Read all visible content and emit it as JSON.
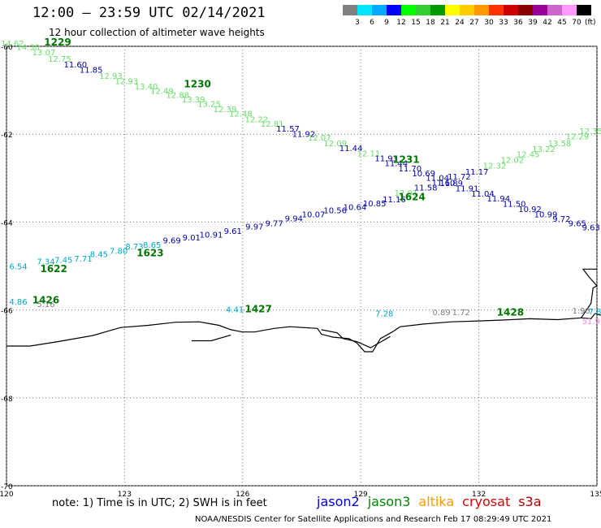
{
  "header": {
    "title": "12:00 — 23:59 UTC 02/14/2021",
    "subtitle": "12 hour collection of altimeter wave heights"
  },
  "colorbar": {
    "unit": "(ft)",
    "ticks": [
      "3",
      "6",
      "9",
      "12",
      "15",
      "18",
      "21",
      "24",
      "27",
      "30",
      "33",
      "36",
      "39",
      "42",
      "45",
      "70"
    ],
    "colors": [
      "#808080",
      "#00e5ff",
      "#00aaff",
      "#0000ff",
      "#00ff00",
      "#33cc33",
      "#009900",
      "#ffff00",
      "#ffcc00",
      "#ff9900",
      "#ff3300",
      "#cc0000",
      "#880000",
      "#990099",
      "#cc66cc",
      "#ff99ff",
      "#000000"
    ]
  },
  "axes": {
    "lat_ticks": [
      "-60",
      "-62",
      "-64",
      "-66",
      "-68",
      "-70"
    ],
    "lon_ticks": [
      "120",
      "123",
      "126",
      "129",
      "132",
      "135"
    ],
    "lat_range": [
      -70,
      -60
    ],
    "lon_range": [
      120,
      135
    ]
  },
  "tracks": [
    {
      "time": "1229",
      "time_lon": 121.3,
      "time_lat": -59.98,
      "time_color": "#007700",
      "points": [
        {
          "lon": 120.15,
          "lat": -60.0,
          "v": "14.62",
          "c": "#66dd66"
        },
        {
          "lon": 120.55,
          "lat": -60.08,
          "v": "14.30",
          "c": "#66dd66"
        },
        {
          "lon": 120.95,
          "lat": -60.2,
          "v": "13.07",
          "c": "#66dd66"
        },
        {
          "lon": 121.35,
          "lat": -60.35,
          "v": "12.75",
          "c": "#66dd66"
        },
        {
          "lon": 121.75,
          "lat": -60.48,
          "v": "11.60",
          "c": "#0000aa"
        },
        {
          "lon": 122.15,
          "lat": -60.6,
          "v": "11.85",
          "c": "#0000aa"
        },
        {
          "lon": 122.65,
          "lat": -60.74,
          "v": "12.93",
          "c": "#66dd66"
        },
        {
          "lon": 123.05,
          "lat": -60.86,
          "v": "12.93",
          "c": "#66dd66"
        }
      ]
    },
    {
      "time": "1230",
      "time_lon": 124.85,
      "time_lat": -60.93,
      "time_color": "#007700",
      "points": [
        {
          "lon": 123.55,
          "lat": -60.98,
          "v": "13.40",
          "c": "#66dd66"
        },
        {
          "lon": 123.95,
          "lat": -61.08,
          "v": "12.49",
          "c": "#66dd66"
        },
        {
          "lon": 124.35,
          "lat": -61.17,
          "v": "12.88",
          "c": "#66dd66"
        },
        {
          "lon": 124.75,
          "lat": -61.28,
          "v": "13.39",
          "c": "#66dd66"
        },
        {
          "lon": 125.15,
          "lat": -61.38,
          "v": "13.25",
          "c": "#66dd66"
        },
        {
          "lon": 125.55,
          "lat": -61.5,
          "v": "12.39",
          "c": "#66dd66"
        },
        {
          "lon": 125.95,
          "lat": -61.6,
          "v": "12.48",
          "c": "#66dd66"
        },
        {
          "lon": 126.35,
          "lat": -61.73,
          "v": "12.22",
          "c": "#66dd66"
        },
        {
          "lon": 126.75,
          "lat": -61.83,
          "v": "12.81",
          "c": "#66dd66"
        },
        {
          "lon": 127.15,
          "lat": -61.94,
          "v": "11.57",
          "c": "#0000aa"
        },
        {
          "lon": 127.55,
          "lat": -62.06,
          "v": "11.92",
          "c": "#0000aa"
        },
        {
          "lon": 127.95,
          "lat": -62.14,
          "v": "12.07",
          "c": "#66dd66"
        },
        {
          "lon": 128.35,
          "lat": -62.27,
          "v": "12.09",
          "c": "#66dd66"
        },
        {
          "lon": 128.75,
          "lat": -62.38,
          "v": "11.44",
          "c": "#0000aa"
        },
        {
          "lon": 129.2,
          "lat": -62.5,
          "v": "12.11",
          "c": "#66dd66"
        },
        {
          "lon": 129.65,
          "lat": -62.62,
          "v": "11.93",
          "c": "#0000aa"
        }
      ]
    },
    {
      "time": "1231",
      "time_lon": 130.15,
      "time_lat": -62.65,
      "time_color": "#007700",
      "points": [
        {
          "lon": 129.9,
          "lat": -62.73,
          "v": "11.44",
          "c": "#0000aa"
        },
        {
          "lon": 130.25,
          "lat": -62.85,
          "v": "11.70",
          "c": "#0000aa"
        },
        {
          "lon": 130.6,
          "lat": -62.96,
          "v": "10.69",
          "c": "#0000aa"
        },
        {
          "lon": 130.95,
          "lat": -63.06,
          "v": "11.04",
          "c": "#0000aa"
        },
        {
          "lon": 131.3,
          "lat": -63.18,
          "v": "11.89",
          "c": "#0000aa"
        },
        {
          "lon": 131.7,
          "lat": -63.3,
          "v": "11.91",
          "c": "#0000aa"
        },
        {
          "lon": 132.1,
          "lat": -63.42,
          "v": "11.04",
          "c": "#0000aa"
        },
        {
          "lon": 132.5,
          "lat": -63.53,
          "v": "11.94",
          "c": "#0000aa"
        },
        {
          "lon": 132.9,
          "lat": -63.65,
          "v": "11.50",
          "c": "#0000aa"
        },
        {
          "lon": 133.3,
          "lat": -63.77,
          "v": "10.92",
          "c": "#0000aa"
        },
        {
          "lon": 133.7,
          "lat": -63.89,
          "v": "10.99",
          "c": "#0000aa"
        },
        {
          "lon": 134.1,
          "lat": -63.99,
          "v": "9.72",
          "c": "#0000aa"
        },
        {
          "lon": 134.5,
          "lat": -64.09,
          "v": "9.65",
          "c": "#0000aa"
        },
        {
          "lon": 134.85,
          "lat": -64.19,
          "v": "9.63",
          "c": "#0000aa"
        }
      ]
    },
    {
      "time": "1622",
      "time_lon": 121.2,
      "time_lat": -65.14,
      "time_color": "#007700",
      "points": [
        {
          "lon": 120.3,
          "lat": -65.07,
          "v": "6.54",
          "c": "#00aacc"
        },
        {
          "lon": 121.0,
          "lat": -64.96,
          "v": "7.34",
          "c": "#00aacc"
        },
        {
          "lon": 121.45,
          "lat": -64.93,
          "v": "7.45",
          "c": "#00aacc"
        },
        {
          "lon": 121.95,
          "lat": -64.9,
          "v": "7.71",
          "c": "#00aacc"
        },
        {
          "lon": 122.35,
          "lat": -64.8,
          "v": "8.45",
          "c": "#00aacc"
        },
        {
          "lon": 122.85,
          "lat": -64.72,
          "v": "7.80",
          "c": "#00aacc"
        }
      ]
    },
    {
      "time": "1623",
      "time_lon": 123.65,
      "time_lat": -64.78,
      "time_color": "#007700",
      "points": [
        {
          "lon": 123.25,
          "lat": -64.62,
          "v": "8.73",
          "c": "#00aacc"
        },
        {
          "lon": 123.7,
          "lat": -64.58,
          "v": "8.65",
          "c": "#00aacc"
        },
        {
          "lon": 124.2,
          "lat": -64.48,
          "v": "9.69",
          "c": "#0000aa"
        },
        {
          "lon": 124.7,
          "lat": -64.42,
          "v": "9.01",
          "c": "#0000aa"
        },
        {
          "lon": 125.2,
          "lat": -64.35,
          "v": "10.91",
          "c": "#0000aa"
        },
        {
          "lon": 125.75,
          "lat": -64.27,
          "v": "9.61",
          "c": "#0000aa"
        },
        {
          "lon": 126.3,
          "lat": -64.17,
          "v": "9.97",
          "c": "#0000aa"
        },
        {
          "lon": 126.8,
          "lat": -64.09,
          "v": "9.77",
          "c": "#0000aa"
        },
        {
          "lon": 127.3,
          "lat": -63.98,
          "v": "9.94",
          "c": "#0000aa"
        },
        {
          "lon": 127.8,
          "lat": -63.89,
          "v": "10.07",
          "c": "#0000aa"
        },
        {
          "lon": 128.35,
          "lat": -63.8,
          "v": "10.56",
          "c": "#0000aa"
        },
        {
          "lon": 128.85,
          "lat": -63.72,
          "v": "10.64",
          "c": "#0000aa"
        },
        {
          "lon": 129.35,
          "lat": -63.64,
          "v": "10.85",
          "c": "#0000aa"
        },
        {
          "lon": 129.85,
          "lat": -63.55,
          "v": "11.16",
          "c": "#0000aa"
        },
        {
          "lon": 130.15,
          "lat": -63.4,
          "v": "12.01",
          "c": "#66dd66"
        },
        {
          "lon": 130.65,
          "lat": -63.28,
          "v": "11.58",
          "c": "#0000aa"
        },
        {
          "lon": 131.1,
          "lat": -63.17,
          "v": "11.60",
          "c": "#0000aa"
        },
        {
          "lon": 131.5,
          "lat": -63.03,
          "v": "11.72",
          "c": "#0000aa"
        },
        {
          "lon": 131.95,
          "lat": -62.92,
          "v": "11.17",
          "c": "#0000aa"
        },
        {
          "lon": 132.4,
          "lat": -62.78,
          "v": "12.32",
          "c": "#66dd66"
        },
        {
          "lon": 132.85,
          "lat": -62.65,
          "v": "12.02",
          "c": "#66dd66"
        },
        {
          "lon": 133.25,
          "lat": -62.52,
          "v": "12.45",
          "c": "#66dd66"
        },
        {
          "lon": 133.65,
          "lat": -62.4,
          "v": "13.22",
          "c": "#66dd66"
        },
        {
          "lon": 134.05,
          "lat": -62.27,
          "v": "13.58",
          "c": "#66dd66"
        },
        {
          "lon": 134.5,
          "lat": -62.12,
          "v": "12.29",
          "c": "#66dd66"
        },
        {
          "lon": 134.85,
          "lat": -62.0,
          "v": "12.35",
          "c": "#66dd66"
        }
      ]
    },
    {
      "time": "1624",
      "time_lon": 130.3,
      "time_lat": -63.5,
      "time_color": "#007700",
      "points": []
    },
    {
      "time": "1426",
      "time_lon": 121.0,
      "time_lat": -65.85,
      "time_color": "#007700",
      "points": [
        {
          "lon": 120.3,
          "lat": -65.88,
          "v": "4.86",
          "c": "#00aacc"
        },
        {
          "lon": 121.0,
          "lat": -65.93,
          "v": "5.16",
          "c": "#808080"
        }
      ]
    },
    {
      "time": "1427",
      "time_lon": 126.4,
      "time_lat": -66.05,
      "time_color": "#007700",
      "points": [
        {
          "lon": 125.8,
          "lat": -66.05,
          "v": "4.41",
          "c": "#00aacc"
        }
      ]
    },
    {
      "time": "1428",
      "time_lon": 132.8,
      "time_lat": -66.13,
      "time_color": "#007700",
      "points": [
        {
          "lon": 129.6,
          "lat": -66.15,
          "v": "7.28",
          "c": "#00aacc"
        },
        {
          "lon": 131.05,
          "lat": -66.12,
          "v": "0.89",
          "c": "#808080"
        },
        {
          "lon": 131.55,
          "lat": -66.12,
          "v": "1.72",
          "c": "#808080"
        },
        {
          "lon": 134.6,
          "lat": -66.08,
          "v": "1.90",
          "c": "#808080"
        },
        {
          "lon": 134.95,
          "lat": -66.1,
          "v": "7.8",
          "c": "#00aacc"
        },
        {
          "lon": 134.85,
          "lat": -66.32,
          "v": "51.9",
          "c": "#ff88dd"
        }
      ]
    }
  ],
  "coastline": [
    [
      [
        120.0,
        -66.82
      ],
      [
        120.6,
        -66.82
      ],
      [
        121.3,
        -66.72
      ],
      [
        122.2,
        -66.58
      ],
      [
        122.9,
        -66.4
      ],
      [
        123.6,
        -66.35
      ],
      [
        124.3,
        -66.28
      ],
      [
        124.9,
        -66.27
      ],
      [
        125.4,
        -66.35
      ],
      [
        125.7,
        -66.45
      ],
      [
        126.0,
        -66.5
      ],
      [
        126.3,
        -66.5
      ],
      [
        126.8,
        -66.42
      ],
      [
        127.2,
        -66.38
      ],
      [
        127.9,
        -66.42
      ],
      [
        128.0,
        -66.55
      ],
      [
        128.3,
        -66.62
      ],
      [
        128.7,
        -66.65
      ],
      [
        128.9,
        -66.75
      ],
      [
        129.1,
        -66.95
      ],
      [
        129.3,
        -66.95
      ],
      [
        129.5,
        -66.65
      ],
      [
        129.8,
        -66.5
      ],
      [
        130.0,
        -66.38
      ],
      [
        130.6,
        -66.32
      ],
      [
        131.3,
        -66.27
      ],
      [
        132.0,
        -66.25
      ],
      [
        132.6,
        -66.23
      ],
      [
        133.3,
        -66.2
      ],
      [
        134.0,
        -66.22
      ],
      [
        134.6,
        -66.18
      ],
      [
        134.85,
        -66.2
      ],
      [
        134.95,
        -66.08
      ],
      [
        135.1,
        -66.12
      ]
    ],
    [
      [
        124.7,
        -66.7
      ],
      [
        125.2,
        -66.7
      ],
      [
        125.7,
        -66.57
      ]
    ],
    [
      [
        128.0,
        -66.45
      ],
      [
        128.4,
        -66.52
      ],
      [
        128.55,
        -66.65
      ],
      [
        128.9,
        -66.72
      ],
      [
        129.25,
        -66.86
      ],
      [
        129.6,
        -66.68
      ],
      [
        129.75,
        -66.6
      ]
    ],
    [
      [
        134.6,
        -66.18
      ],
      [
        134.85,
        -65.85
      ],
      [
        134.9,
        -65.5
      ],
      [
        135.0,
        -65.45
      ],
      [
        134.8,
        -65.25
      ],
      [
        134.65,
        -65.07
      ],
      [
        135.0,
        -65.07
      ]
    ]
  ],
  "legend": {
    "note": "note: 1) Time is in UTC; 2) SWH is in feet",
    "satellites": [
      {
        "name": "jason2",
        "color": "#0000dd"
      },
      {
        "name": "jason3",
        "color": "#008800"
      },
      {
        "name": "altika",
        "color": "#ff9900"
      },
      {
        "name": "cryosat",
        "color": "#dd0000"
      },
      {
        "name": "s3a",
        "color": "#aa0000"
      }
    ],
    "credit": "NOAA/NESDIS Center for Satellite Applications and Research    Feb 17 08:29:49 UTC 2021"
  }
}
